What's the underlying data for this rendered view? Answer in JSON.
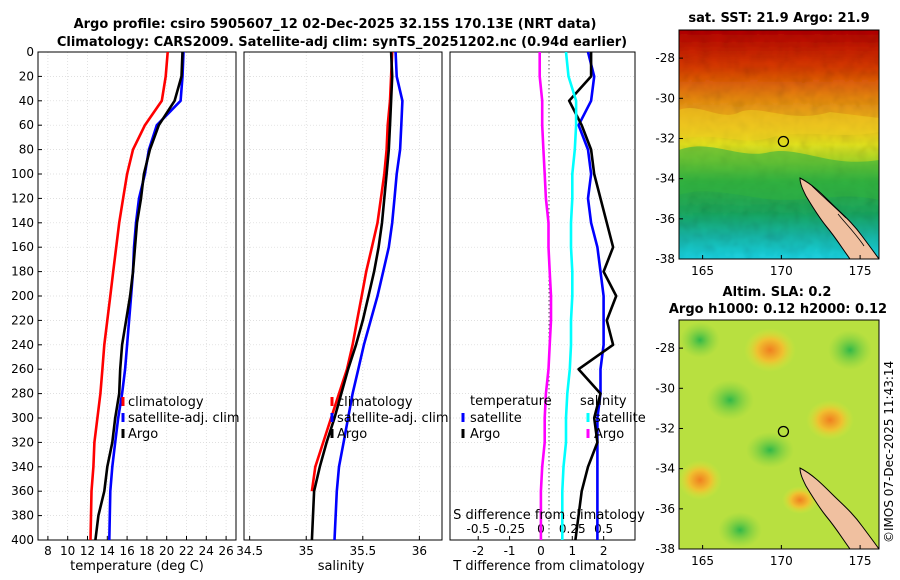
{
  "title": {
    "line1": "Argo profile: csiro 5905607_12 02-Dec-2025 32.15S 170.13E (NRT data)",
    "line2": "Climatology: CARS2009. Satellite-adj clim: synTS_20251202.nc (0.94d earlier)"
  },
  "depth_ticks": [
    "0",
    "20",
    "40",
    "60",
    "80",
    "100",
    "120",
    "140",
    "160",
    "180",
    "200",
    "220",
    "240",
    "260",
    "280",
    "300",
    "320",
    "340",
    "360",
    "380",
    "400"
  ],
  "colors": {
    "climatology": "#ff0000",
    "satellite": "#0000ff",
    "argo": "#000000",
    "temp_diff": "#ff00ff",
    "sal_diff": "#00ffff"
  },
  "chart_data": [
    {
      "type": "line",
      "name": "temperature-panel",
      "xlabel": "temperature (deg C)",
      "xlim": [
        7,
        27
      ],
      "ylim": [
        400,
        0
      ],
      "x_ticks": [
        "8",
        "10",
        "12",
        "14",
        "16",
        "18",
        "20",
        "22",
        "24",
        "26"
      ],
      "legend": [
        "climatology",
        "satellite-adj. clim",
        "Argo"
      ],
      "series": [
        {
          "name": "climatology",
          "x": [
            20.1,
            19.9,
            19.5,
            17.8,
            16.6,
            16.0,
            15.6,
            15.2,
            14.9,
            14.6,
            14.3,
            14.0,
            13.7,
            13.5,
            13.3,
            13.0,
            12.7,
            12.6,
            12.4,
            12.3
          ],
          "y": [
            0,
            20,
            40,
            60,
            80,
            100,
            120,
            140,
            160,
            180,
            200,
            220,
            240,
            260,
            280,
            300,
            320,
            340,
            360,
            400
          ]
        },
        {
          "name": "satellite-adj. clim",
          "x": [
            21.7,
            21.6,
            21.4,
            19.0,
            18.2,
            17.8,
            17.2,
            16.9,
            16.7,
            16.6,
            16.4,
            16.2,
            16.0,
            15.8,
            15.5,
            15.1,
            14.8,
            14.5,
            14.3,
            14.2
          ],
          "y": [
            0,
            20,
            40,
            60,
            80,
            100,
            120,
            140,
            160,
            180,
            200,
            220,
            240,
            260,
            280,
            300,
            320,
            340,
            360,
            400
          ]
        },
        {
          "name": "Argo",
          "x": [
            21.6,
            21.5,
            20.8,
            19.2,
            18.3,
            17.7,
            17.4,
            17.0,
            16.8,
            16.6,
            16.3,
            15.9,
            15.5,
            15.3,
            15.2,
            14.8,
            14.5,
            14.0,
            13.7,
            13.1,
            12.8
          ],
          "y": [
            0,
            20,
            40,
            60,
            80,
            100,
            120,
            140,
            160,
            180,
            200,
            220,
            240,
            260,
            280,
            300,
            320,
            340,
            360,
            380,
            400
          ]
        }
      ]
    },
    {
      "type": "line",
      "name": "salinity-panel",
      "xlabel": "salinity",
      "xlim": [
        34.45,
        36.2
      ],
      "ylim": [
        400,
        0
      ],
      "x_ticks": [
        "34.5",
        "35",
        "35.5",
        "36"
      ],
      "legend": [
        "climatology",
        "satellite-adj. clim",
        "Argo"
      ],
      "series": [
        {
          "name": "climatology",
          "x": [
            35.76,
            35.75,
            35.74,
            35.72,
            35.71,
            35.69,
            35.66,
            35.63,
            35.58,
            35.53,
            35.49,
            35.45,
            35.41,
            35.36,
            35.29,
            35.22,
            35.15,
            35.08,
            35.05
          ],
          "y": [
            0,
            20,
            40,
            60,
            80,
            100,
            120,
            140,
            160,
            180,
            200,
            220,
            240,
            260,
            280,
            300,
            320,
            340,
            360
          ]
        },
        {
          "name": "satellite-adj. clim",
          "x": [
            35.79,
            35.8,
            35.85,
            35.84,
            35.83,
            35.8,
            35.78,
            35.76,
            35.73,
            35.68,
            35.63,
            35.57,
            35.51,
            35.46,
            35.41,
            35.37,
            35.33,
            35.29,
            35.27,
            35.25
          ],
          "y": [
            0,
            20,
            40,
            60,
            80,
            100,
            120,
            140,
            160,
            180,
            200,
            220,
            240,
            260,
            280,
            300,
            320,
            340,
            360,
            400
          ]
        },
        {
          "name": "Argo",
          "x": [
            35.75,
            35.76,
            35.75,
            35.74,
            35.73,
            35.71,
            35.69,
            35.67,
            35.64,
            35.6,
            35.55,
            35.5,
            35.44,
            35.37,
            35.31,
            35.25,
            35.18,
            35.12,
            35.07,
            35.05
          ],
          "y": [
            0,
            20,
            40,
            60,
            80,
            100,
            120,
            140,
            160,
            180,
            200,
            220,
            240,
            260,
            280,
            300,
            320,
            340,
            360,
            400
          ]
        }
      ]
    },
    {
      "type": "line",
      "name": "difference-panel",
      "xlabel": "T difference from climatology",
      "xlabel_top": "S difference from climatology",
      "xlim": [
        -2.9,
        3.0
      ],
      "ylim": [
        400,
        0
      ],
      "x_ticks": [
        "-2",
        "-1",
        "0",
        "1",
        "2"
      ],
      "s_ticks": [
        "-0.5",
        "-0.25",
        "0",
        "0.25",
        "0.5"
      ],
      "legend_left_title": "temperature",
      "legend_right_title": "salinity",
      "legend_left": [
        "satellite",
        "Argo"
      ],
      "legend_right": [
        "satellite",
        "Argo"
      ],
      "series": [
        {
          "name": "temperature satellite",
          "x": [
            1.5,
            1.7,
            1.6,
            1.2,
            1.5,
            1.6,
            1.5,
            1.6,
            1.8,
            1.9,
            2.0,
            2.0,
            2.0,
            1.9,
            1.9,
            1.8,
            1.8,
            1.8,
            1.8,
            1.8
          ],
          "y": [
            0,
            20,
            40,
            60,
            80,
            100,
            120,
            140,
            160,
            180,
            200,
            220,
            240,
            260,
            280,
            300,
            320,
            340,
            360,
            400
          ]
        },
        {
          "name": "temperature Argo",
          "x": [
            1.6,
            1.6,
            0.9,
            1.3,
            1.6,
            1.7,
            1.9,
            2.1,
            2.3,
            2.0,
            2.4,
            2.1,
            2.3,
            1.2,
            1.9,
            1.7,
            1.8,
            1.5,
            1.3,
            1.1
          ],
          "y": [
            0,
            20,
            40,
            60,
            80,
            100,
            120,
            140,
            160,
            180,
            200,
            220,
            240,
            260,
            280,
            300,
            320,
            340,
            360,
            400
          ]
        },
        {
          "name": "salinity satellite",
          "x": [
            0.2,
            0.22,
            0.28,
            0.28,
            0.27,
            0.25,
            0.25,
            0.24,
            0.24,
            0.25,
            0.25,
            0.24,
            0.24,
            0.23,
            0.21,
            0.2,
            0.2,
            0.18,
            0.17,
            0.17
          ],
          "y": [
            0,
            20,
            40,
            60,
            80,
            100,
            120,
            140,
            160,
            180,
            200,
            220,
            240,
            260,
            280,
            300,
            320,
            340,
            360,
            400
          ]
        },
        {
          "name": "salinity Argo",
          "x": [
            -0.01,
            -0.01,
            0.01,
            0.01,
            0.02,
            0.03,
            0.04,
            0.06,
            0.06,
            0.07,
            0.08,
            0.08,
            0.07,
            0.06,
            0.04,
            0.03,
            0.03,
            0.01,
            0,
            0
          ],
          "y": [
            0,
            20,
            40,
            60,
            80,
            100,
            120,
            140,
            160,
            180,
            200,
            220,
            240,
            260,
            280,
            300,
            320,
            340,
            360,
            400
          ]
        }
      ]
    },
    {
      "type": "heatmap",
      "name": "sst-map",
      "title": "sat. SST: 21.9 Argo: 21.9",
      "xlim": [
        163.5,
        176.2
      ],
      "ylim": [
        -38,
        -26.6
      ],
      "x_ticks": [
        "165",
        "170",
        "175"
      ],
      "y_ticks": [
        "-28",
        "-30",
        "-32",
        "-34",
        "-36",
        "-38"
      ],
      "argo_position": {
        "lon": 170.13,
        "lat": -32.15
      }
    },
    {
      "type": "heatmap",
      "name": "sla-map",
      "title_line1": "Altim. SLA: 0.2",
      "title_line2": "Argo h1000: 0.12 h2000: 0.12",
      "xlim": [
        163.5,
        176.2
      ],
      "ylim": [
        -38,
        -26.6
      ],
      "x_ticks": [
        "165",
        "170",
        "175"
      ],
      "y_ticks": [
        "-28",
        "-30",
        "-32",
        "-34",
        "-36",
        "-38"
      ],
      "argo_position": {
        "lon": 170.13,
        "lat": -32.15
      }
    }
  ],
  "credit": "©IMOS 07-Dec-2025 11:43:14"
}
